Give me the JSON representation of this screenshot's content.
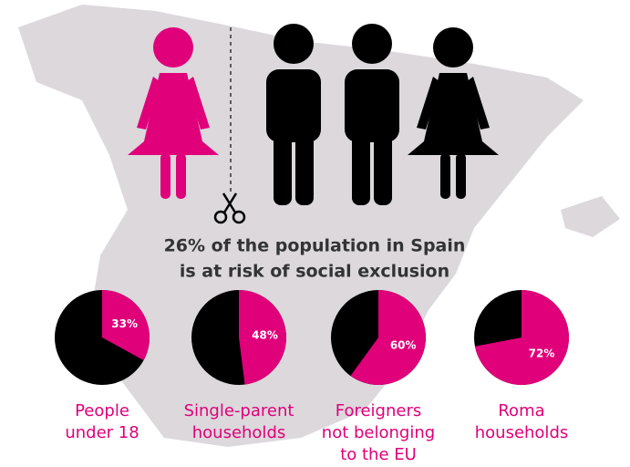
{
  "headline": [
    "26% of the population in Spain",
    "is at risk of social exclusion"
  ],
  "chart_data": [
    {
      "type": "pie",
      "label": [
        "People",
        "under 18"
      ],
      "values": [
        33
      ],
      "value_labels": [
        "33%"
      ],
      "color": "#e0007a",
      "rest_color": "#000000"
    },
    {
      "type": "pie",
      "label": [
        "Single-parent",
        "households"
      ],
      "values": [
        48
      ],
      "value_labels": [
        "48%"
      ],
      "color": "#e0007a",
      "rest_color": "#000000"
    },
    {
      "type": "pie",
      "label": [
        "Foreigners",
        "not belonging",
        "to the EU"
      ],
      "values": [
        60
      ],
      "value_labels": [
        "60%"
      ],
      "color": "#e0007a",
      "rest_color": "#000000"
    },
    {
      "type": "pie",
      "label": [
        "Roma",
        "households"
      ],
      "values": [
        72
      ],
      "value_labels": [
        "72%"
      ],
      "color": "#e0007a",
      "rest_color": "#000000"
    }
  ]
}
